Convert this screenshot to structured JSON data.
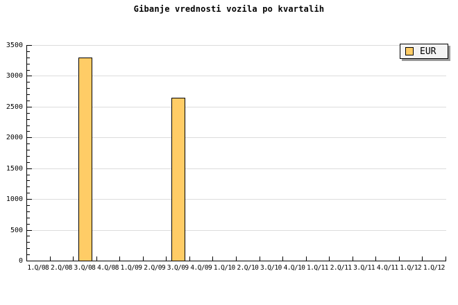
{
  "chart_data": {
    "type": "bar",
    "title": "Gibanje vrednosti vozila po kvartalih",
    "categories": [
      "1.Q/08",
      "2.Q/08",
      "3.Q/08",
      "4.Q/08",
      "1.Q/09",
      "2.Q/09",
      "3.Q/09",
      "4.Q/09",
      "1.Q/10",
      "2.Q/10",
      "3.Q/10",
      "4.Q/10",
      "1.Q/11",
      "2.Q/11",
      "3.Q/11",
      "4.Q/11",
      "1.Q/12",
      "1.Q/12"
    ],
    "series": [
      {
        "name": "EUR",
        "values": [
          null,
          null,
          3300,
          null,
          null,
          null,
          2650,
          null,
          null,
          null,
          null,
          null,
          null,
          null,
          null,
          null,
          null,
          null
        ]
      }
    ],
    "xlabel": "",
    "ylabel": "",
    "ylim": [
      0,
      3500
    ],
    "y_major_step": 500,
    "y_minor_step": 100,
    "y_tick_labels": [
      "0",
      "500",
      "1000",
      "1500",
      "2000",
      "2500",
      "3000",
      "3500"
    ],
    "grid": "horizontal-major-only",
    "legend_position": "top-right",
    "colors": {
      "bar_fill": "#FFCC66",
      "bar_border": "#000000",
      "grid": "#DCDCDC",
      "axis": "#000000",
      "legend_bg": "#F4F4F4",
      "legend_shadow": "#999999"
    }
  }
}
